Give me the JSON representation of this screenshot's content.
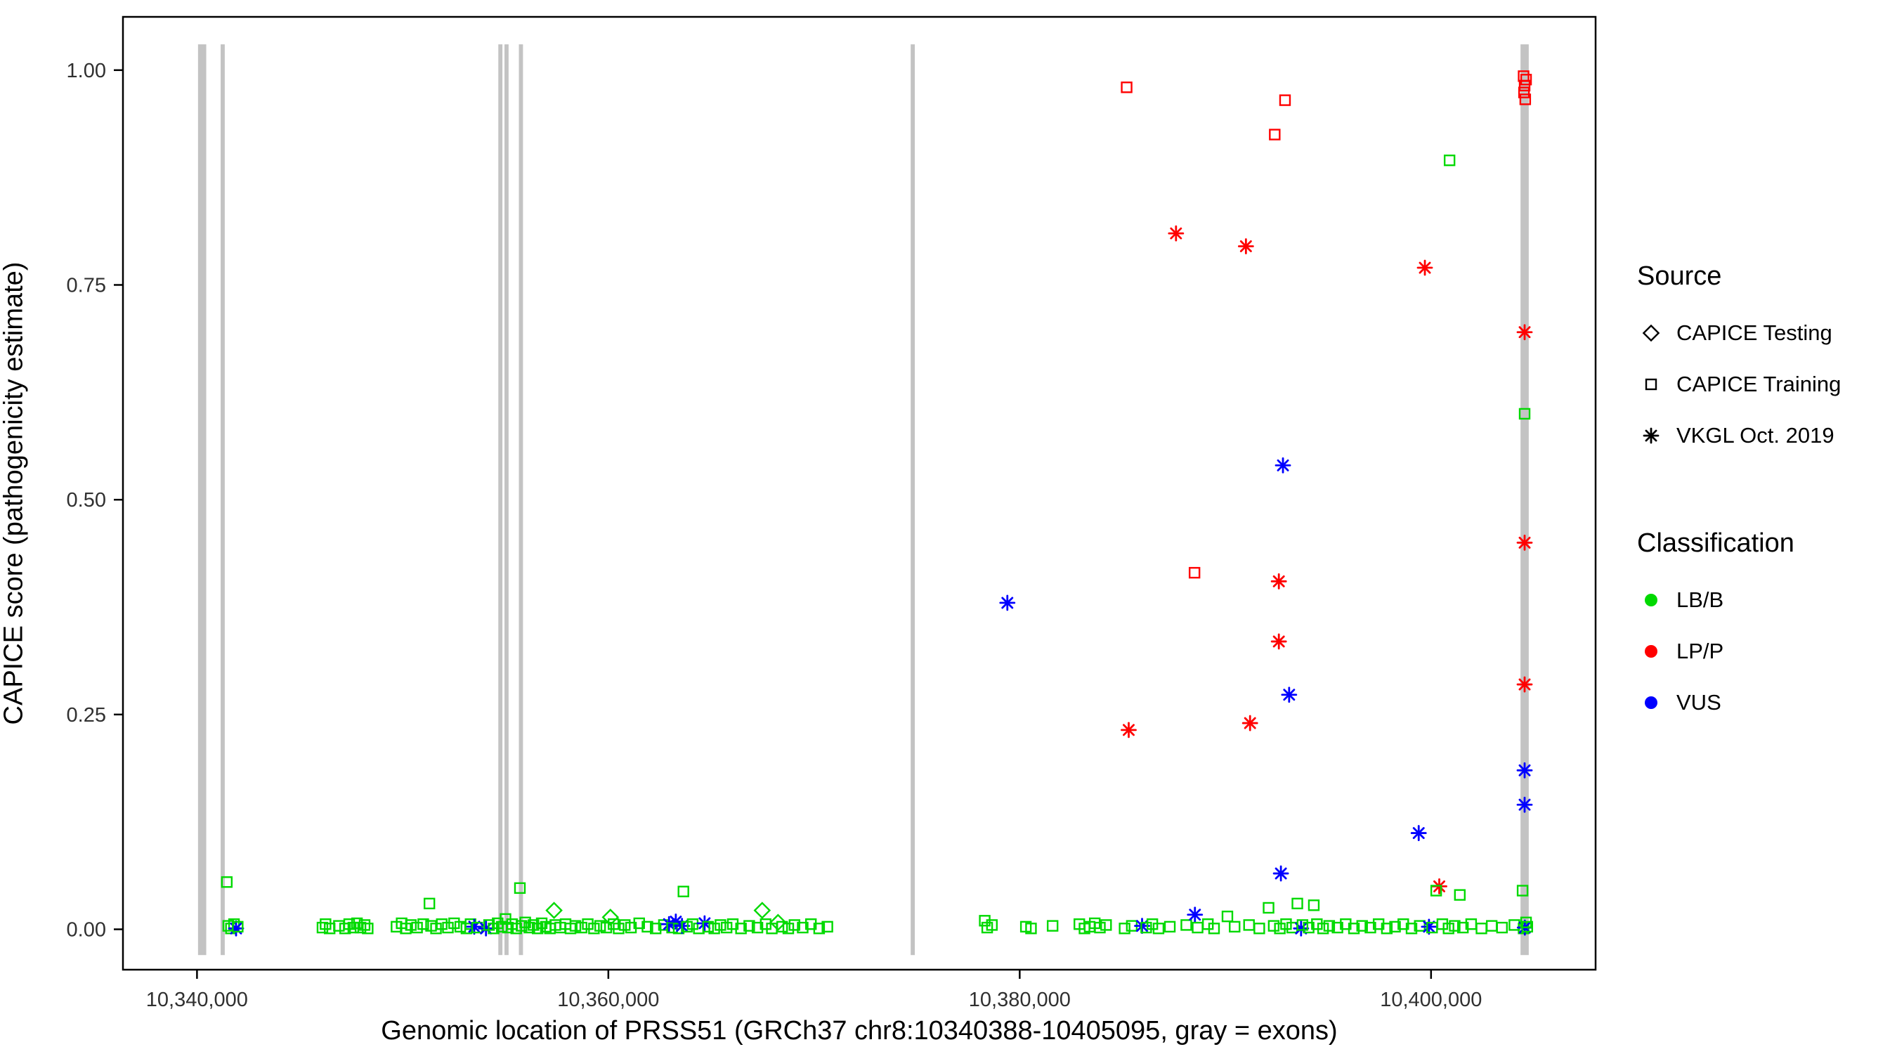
{
  "chart_data": {
    "type": "scatter",
    "title": "",
    "xlabel": "Genomic location of PRSS51 (GRCh37 chr8:10340388-10405095, gray = exons)",
    "ylabel": "CAPICE score (pathogenicity estimate)",
    "x_domain": [
      10336400,
      10408000
    ],
    "y_domain": [
      -0.047,
      1.062
    ],
    "x_ticks": [
      {
        "v": 10340000,
        "label": "10,340,000"
      },
      {
        "v": 10360000,
        "label": "10,360,000"
      },
      {
        "v": 10380000,
        "label": "10,380,000"
      },
      {
        "v": 10400000,
        "label": "10,400,000"
      }
    ],
    "y_ticks": [
      {
        "v": 0.0,
        "label": "0.00"
      },
      {
        "v": 0.25,
        "label": "0.25"
      },
      {
        "v": 0.5,
        "label": "0.50"
      },
      {
        "v": 0.75,
        "label": "0.75"
      },
      {
        "v": 1.0,
        "label": "1.00"
      }
    ],
    "exons": [
      [
        10340050,
        10340450
      ],
      [
        10341150,
        10341350
      ],
      [
        10354650,
        10354850
      ],
      [
        10354950,
        10355150
      ],
      [
        10355650,
        10355850
      ],
      [
        10374700,
        10374900
      ],
      [
        10404350,
        10404750
      ]
    ],
    "exon_span_y": [
      -0.03,
      1.03
    ],
    "colors": {
      "lb_b": "#00D900",
      "lp_p": "#FF0000",
      "vus": "#0000FF",
      "exon": "#C3C3C3",
      "axis": "#000000"
    },
    "point_format": [
      "x",
      "y",
      "shape: s=square d=diamond a=asterisk",
      "class: g=LB/B r=LP/P b=VUS"
    ],
    "points": [
      [
        10385200,
        0.98,
        "s",
        "r"
      ],
      [
        10392900,
        0.965,
        "s",
        "r"
      ],
      [
        10392400,
        0.925,
        "s",
        "r"
      ],
      [
        10388500,
        0.415,
        "s",
        "r"
      ],
      [
        10404500,
        0.993,
        "s",
        "r"
      ],
      [
        10404620,
        0.989,
        "s",
        "r"
      ],
      [
        10404550,
        0.982,
        "s",
        "r"
      ],
      [
        10404520,
        0.974,
        "s",
        "r"
      ],
      [
        10404580,
        0.966,
        "s",
        "r"
      ],
      [
        10387600,
        0.81,
        "a",
        "r"
      ],
      [
        10391000,
        0.795,
        "a",
        "r"
      ],
      [
        10399700,
        0.77,
        "a",
        "r"
      ],
      [
        10404550,
        0.695,
        "a",
        "r"
      ],
      [
        10404550,
        0.45,
        "a",
        "r"
      ],
      [
        10392600,
        0.405,
        "a",
        "r"
      ],
      [
        10392600,
        0.335,
        "a",
        "r"
      ],
      [
        10404550,
        0.285,
        "a",
        "r"
      ],
      [
        10391200,
        0.24,
        "a",
        "r"
      ],
      [
        10385300,
        0.232,
        "a",
        "r"
      ],
      [
        10400400,
        0.05,
        "a",
        "r"
      ],
      [
        10379400,
        0.38,
        "a",
        "b"
      ],
      [
        10392800,
        0.54,
        "a",
        "b"
      ],
      [
        10393100,
        0.273,
        "a",
        "b"
      ],
      [
        10404550,
        0.185,
        "a",
        "b"
      ],
      [
        10404550,
        0.145,
        "a",
        "b"
      ],
      [
        10399400,
        0.112,
        "a",
        "b"
      ],
      [
        10392700,
        0.065,
        "a",
        "b"
      ],
      [
        10400900,
        0.895,
        "s",
        "g"
      ],
      [
        10404550,
        0.6,
        "s",
        "g"
      ],
      [
        10341450,
        0.055,
        "s",
        "g"
      ],
      [
        10341520,
        0.004,
        "s",
        "g"
      ],
      [
        10341650,
        0.001,
        "s",
        "g"
      ],
      [
        10341800,
        0.006,
        "s",
        "g"
      ],
      [
        10341900,
        0.001,
        "a",
        "b"
      ],
      [
        10341980,
        0.003,
        "s",
        "g"
      ],
      [
        10346100,
        0.002,
        "s",
        "g"
      ],
      [
        10346250,
        0.006,
        "s",
        "g"
      ],
      [
        10346450,
        0.001,
        "s",
        "g"
      ],
      [
        10346900,
        0.004,
        "s",
        "g"
      ],
      [
        10347200,
        0.001,
        "s",
        "g"
      ],
      [
        10347400,
        0.006,
        "s",
        "g"
      ],
      [
        10347600,
        0.002,
        "s",
        "g"
      ],
      [
        10347780,
        0.007,
        "s",
        "g"
      ],
      [
        10347950,
        0.002,
        "s",
        "g"
      ],
      [
        10348150,
        0.005,
        "s",
        "g"
      ],
      [
        10348300,
        0.001,
        "s",
        "g"
      ],
      [
        10349700,
        0.003,
        "s",
        "g"
      ],
      [
        10349950,
        0.007,
        "s",
        "g"
      ],
      [
        10350150,
        0.001,
        "s",
        "g"
      ],
      [
        10350400,
        0.005,
        "s",
        "g"
      ],
      [
        10350700,
        0.002,
        "s",
        "g"
      ],
      [
        10351000,
        0.006,
        "s",
        "g"
      ],
      [
        10351300,
        0.03,
        "s",
        "g"
      ],
      [
        10351380,
        0.004,
        "s",
        "g"
      ],
      [
        10351620,
        0.001,
        "s",
        "g"
      ],
      [
        10351900,
        0.006,
        "s",
        "g"
      ],
      [
        10352200,
        0.002,
        "s",
        "g"
      ],
      [
        10352500,
        0.007,
        "s",
        "g"
      ],
      [
        10352800,
        0.003,
        "s",
        "g"
      ],
      [
        10353100,
        0.001,
        "s",
        "g"
      ],
      [
        10353300,
        0.006,
        "s",
        "g"
      ],
      [
        10353480,
        0.003,
        "a",
        "b"
      ],
      [
        10353620,
        0.002,
        "s",
        "g"
      ],
      [
        10354050,
        0.001,
        "a",
        "b"
      ],
      [
        10354200,
        0.005,
        "s",
        "g"
      ],
      [
        10354420,
        0.001,
        "s",
        "g"
      ],
      [
        10354620,
        0.007,
        "s",
        "g"
      ],
      [
        10354820,
        0.003,
        "s",
        "g"
      ],
      [
        10355000,
        0.012,
        "s",
        "g"
      ],
      [
        10355120,
        0.002,
        "s",
        "g"
      ],
      [
        10355320,
        0.006,
        "s",
        "g"
      ],
      [
        10355520,
        0.001,
        "s",
        "g"
      ],
      [
        10355700,
        0.048,
        "s",
        "g"
      ],
      [
        10355780,
        0.004,
        "s",
        "g"
      ],
      [
        10355960,
        0.008,
        "s",
        "g"
      ],
      [
        10356160,
        0.002,
        "s",
        "g"
      ],
      [
        10356360,
        0.005,
        "s",
        "g"
      ],
      [
        10356560,
        0.001,
        "s",
        "g"
      ],
      [
        10356760,
        0.007,
        "s",
        "g"
      ],
      [
        10356960,
        0.003,
        "s",
        "g"
      ],
      [
        10357160,
        0.001,
        "s",
        "g"
      ],
      [
        10357360,
        0.022,
        "d",
        "g"
      ],
      [
        10357420,
        0.005,
        "s",
        "g"
      ],
      [
        10357660,
        0.002,
        "s",
        "g"
      ],
      [
        10357920,
        0.006,
        "s",
        "g"
      ],
      [
        10358160,
        0.001,
        "s",
        "g"
      ],
      [
        10358400,
        0.004,
        "s",
        "g"
      ],
      [
        10358700,
        0.002,
        "s",
        "g"
      ],
      [
        10359000,
        0.006,
        "s",
        "g"
      ],
      [
        10359300,
        0.001,
        "s",
        "g"
      ],
      [
        10359600,
        0.004,
        "s",
        "g"
      ],
      [
        10359900,
        0.002,
        "s",
        "g"
      ],
      [
        10360100,
        0.014,
        "d",
        "g"
      ],
      [
        10360250,
        0.006,
        "s",
        "g"
      ],
      [
        10360500,
        0.001,
        "s",
        "g"
      ],
      [
        10360800,
        0.005,
        "s",
        "g"
      ],
      [
        10361100,
        0.002,
        "s",
        "g"
      ],
      [
        10361500,
        0.007,
        "s",
        "g"
      ],
      [
        10361900,
        0.003,
        "s",
        "g"
      ],
      [
        10362300,
        0.001,
        "s",
        "g"
      ],
      [
        10362700,
        0.005,
        "s",
        "g"
      ],
      [
        10362950,
        0.006,
        "a",
        "b"
      ],
      [
        10363100,
        0.002,
        "s",
        "g"
      ],
      [
        10363280,
        0.009,
        "a",
        "b"
      ],
      [
        10363420,
        0.001,
        "s",
        "g"
      ],
      [
        10363580,
        0.004,
        "a",
        "b"
      ],
      [
        10363650,
        0.044,
        "s",
        "g"
      ],
      [
        10363820,
        0.003,
        "s",
        "g"
      ],
      [
        10364100,
        0.006,
        "s",
        "g"
      ],
      [
        10364400,
        0.001,
        "s",
        "g"
      ],
      [
        10364680,
        0.007,
        "a",
        "b"
      ],
      [
        10364850,
        0.003,
        "s",
        "g"
      ],
      [
        10365150,
        0.001,
        "s",
        "g"
      ],
      [
        10365450,
        0.005,
        "s",
        "g"
      ],
      [
        10365750,
        0.002,
        "s",
        "g"
      ],
      [
        10366050,
        0.006,
        "s",
        "g"
      ],
      [
        10366450,
        0.001,
        "s",
        "g"
      ],
      [
        10366850,
        0.004,
        "s",
        "g"
      ],
      [
        10367250,
        0.002,
        "s",
        "g"
      ],
      [
        10367480,
        0.022,
        "d",
        "g"
      ],
      [
        10367650,
        0.006,
        "s",
        "g"
      ],
      [
        10367950,
        0.001,
        "s",
        "g"
      ],
      [
        10368250,
        0.008,
        "d",
        "g"
      ],
      [
        10368450,
        0.003,
        "s",
        "g"
      ],
      [
        10368750,
        0.001,
        "s",
        "g"
      ],
      [
        10369050,
        0.005,
        "s",
        "g"
      ],
      [
        10369450,
        0.002,
        "s",
        "g"
      ],
      [
        10369850,
        0.006,
        "s",
        "g"
      ],
      [
        10370250,
        0.001,
        "s",
        "g"
      ],
      [
        10370650,
        0.003,
        "s",
        "g"
      ],
      [
        10378300,
        0.01,
        "s",
        "g"
      ],
      [
        10378420,
        0.002,
        "s",
        "g"
      ],
      [
        10378650,
        0.005,
        "s",
        "g"
      ],
      [
        10380300,
        0.003,
        "s",
        "g"
      ],
      [
        10380550,
        0.001,
        "s",
        "g"
      ],
      [
        10381600,
        0.004,
        "s",
        "g"
      ],
      [
        10382900,
        0.006,
        "s",
        "g"
      ],
      [
        10383150,
        0.001,
        "s",
        "g"
      ],
      [
        10383400,
        0.003,
        "s",
        "g"
      ],
      [
        10383650,
        0.007,
        "s",
        "g"
      ],
      [
        10383900,
        0.002,
        "s",
        "g"
      ],
      [
        10384200,
        0.005,
        "s",
        "g"
      ],
      [
        10385100,
        0.001,
        "s",
        "g"
      ],
      [
        10385450,
        0.004,
        "s",
        "g"
      ],
      [
        10385950,
        0.004,
        "a",
        "b"
      ],
      [
        10386150,
        0.002,
        "s",
        "g"
      ],
      [
        10386450,
        0.006,
        "s",
        "g"
      ],
      [
        10386750,
        0.001,
        "s",
        "g"
      ],
      [
        10387300,
        0.003,
        "s",
        "g"
      ],
      [
        10388100,
        0.005,
        "s",
        "g"
      ],
      [
        10388520,
        0.017,
        "a",
        "b"
      ],
      [
        10388650,
        0.002,
        "s",
        "g"
      ],
      [
        10389150,
        0.006,
        "s",
        "g"
      ],
      [
        10389450,
        0.001,
        "s",
        "g"
      ],
      [
        10390100,
        0.015,
        "s",
        "g"
      ],
      [
        10390450,
        0.003,
        "s",
        "g"
      ],
      [
        10391150,
        0.005,
        "s",
        "g"
      ],
      [
        10391650,
        0.001,
        "s",
        "g"
      ],
      [
        10392100,
        0.025,
        "s",
        "g"
      ],
      [
        10392350,
        0.004,
        "s",
        "g"
      ],
      [
        10392650,
        0.001,
        "s",
        "g"
      ],
      [
        10392950,
        0.006,
        "s",
        "g"
      ],
      [
        10393250,
        0.002,
        "s",
        "g"
      ],
      [
        10393500,
        0.03,
        "s",
        "g"
      ],
      [
        10393680,
        0.001,
        "a",
        "b"
      ],
      [
        10393750,
        0.005,
        "s",
        "g"
      ],
      [
        10394050,
        0.002,
        "s",
        "g"
      ],
      [
        10394300,
        0.028,
        "s",
        "g"
      ],
      [
        10394450,
        0.006,
        "s",
        "g"
      ],
      [
        10394750,
        0.001,
        "s",
        "g"
      ],
      [
        10395050,
        0.004,
        "s",
        "g"
      ],
      [
        10395450,
        0.002,
        "s",
        "g"
      ],
      [
        10395850,
        0.006,
        "s",
        "g"
      ],
      [
        10396250,
        0.001,
        "s",
        "g"
      ],
      [
        10396650,
        0.004,
        "s",
        "g"
      ],
      [
        10397050,
        0.002,
        "s",
        "g"
      ],
      [
        10397450,
        0.006,
        "s",
        "g"
      ],
      [
        10397850,
        0.001,
        "s",
        "g"
      ],
      [
        10398250,
        0.003,
        "s",
        "g"
      ],
      [
        10398650,
        0.006,
        "s",
        "g"
      ],
      [
        10399050,
        0.001,
        "s",
        "g"
      ],
      [
        10399450,
        0.004,
        "s",
        "g"
      ],
      [
        10399900,
        0.003,
        "a",
        "b"
      ],
      [
        10400050,
        0.002,
        "s",
        "g"
      ],
      [
        10400250,
        0.045,
        "s",
        "g"
      ],
      [
        10400550,
        0.006,
        "s",
        "g"
      ],
      [
        10400850,
        0.001,
        "s",
        "g"
      ],
      [
        10401150,
        0.004,
        "s",
        "g"
      ],
      [
        10401400,
        0.04,
        "s",
        "g"
      ],
      [
        10401550,
        0.002,
        "s",
        "g"
      ],
      [
        10401950,
        0.006,
        "s",
        "g"
      ],
      [
        10402450,
        0.001,
        "s",
        "g"
      ],
      [
        10402950,
        0.004,
        "s",
        "g"
      ],
      [
        10403450,
        0.002,
        "s",
        "g"
      ],
      [
        10404050,
        0.005,
        "s",
        "g"
      ],
      [
        10404450,
        0.045,
        "s",
        "g"
      ],
      [
        10404500,
        0.001,
        "s",
        "g"
      ],
      [
        10404560,
        0.002,
        "a",
        "b"
      ],
      [
        10404620,
        0.008,
        "s",
        "g"
      ],
      [
        10404680,
        0.003,
        "s",
        "g"
      ]
    ],
    "legend": {
      "source": {
        "title": "Source",
        "items": [
          {
            "shape": "d",
            "label": "CAPICE Testing"
          },
          {
            "shape": "s",
            "label": "CAPICE Training"
          },
          {
            "shape": "a",
            "label": "VKGL Oct. 2019"
          }
        ]
      },
      "classification": {
        "title": "Classification",
        "items": [
          {
            "color_key": "lb_b",
            "label": "LB/B"
          },
          {
            "color_key": "lp_p",
            "label": "LP/P"
          },
          {
            "color_key": "vus",
            "label": "VUS"
          }
        ]
      }
    }
  }
}
